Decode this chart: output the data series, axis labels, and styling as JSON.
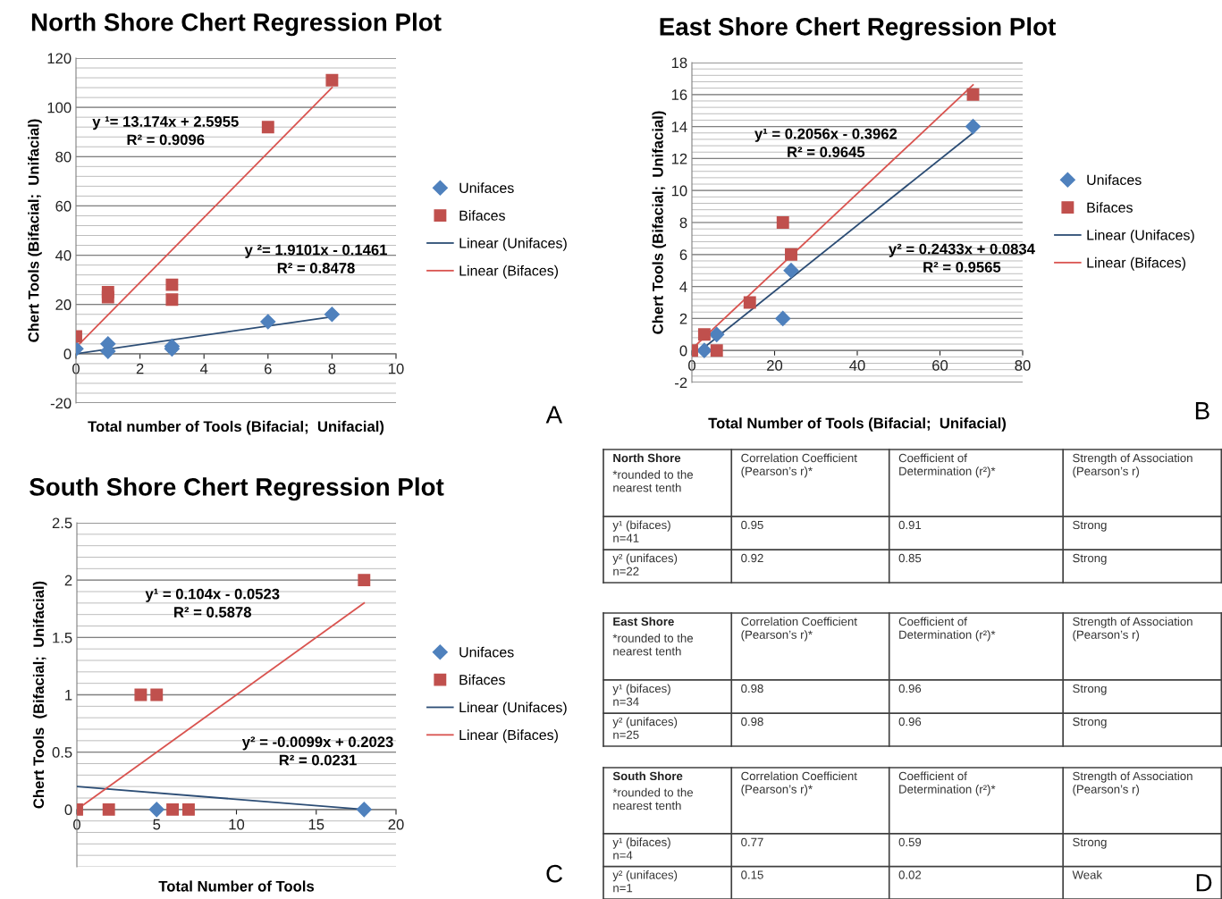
{
  "chart_data": [
    {
      "type": "scatter",
      "title": "North Shore Chert Regression Plot",
      "xlabel": "Total number of Tools (Bifacial;  Unifacial)",
      "ylabel": "Chert Tools (Bifacial;  Unifacial)",
      "xlim": [
        0,
        10
      ],
      "xticks": [
        0,
        2,
        4,
        6,
        8,
        10
      ],
      "ylim": [
        -20,
        120
      ],
      "yticks": [
        -20,
        0,
        20,
        40,
        60,
        80,
        100,
        120
      ],
      "grid": "y",
      "legend": "right",
      "series": [
        {
          "name": "Unifaces",
          "type": "scatter",
          "marker": "diamond",
          "color": "#4f81bd",
          "x": [
            0,
            1,
            1,
            3,
            3,
            6,
            8
          ],
          "values": [
            2,
            4,
            1,
            3,
            2,
            13,
            16
          ]
        },
        {
          "name": "Bifaces",
          "type": "scatter",
          "marker": "square",
          "color": "#c0504d",
          "x": [
            0,
            1,
            1,
            3,
            3,
            6,
            8
          ],
          "values": [
            7,
            25,
            23,
            28,
            22,
            92,
            111
          ]
        },
        {
          "name": "Linear (Unifaces)",
          "type": "line",
          "color": "#2c4d75",
          "x": [
            0,
            8
          ],
          "values": [
            0,
            15
          ]
        },
        {
          "name": "Linear (Bifaces)",
          "type": "line",
          "color": "#d9534f",
          "x": [
            0,
            8
          ],
          "values": [
            2.6,
            108
          ]
        }
      ],
      "annotations": [
        "y ¹= 13.174x + 2.5955\nR² = 0.9096",
        "y ²= 1.9101x - 0.1461\nR² = 0.8478",
        "A"
      ]
    },
    {
      "type": "scatter",
      "title": "East Shore Chert Regression Plot",
      "xlabel": "Total Number of Tools (Bifacial;  Unifacial)",
      "ylabel": "Chert Tools (Bifacial;  Unifacial)",
      "xlim": [
        0,
        80
      ],
      "xticks": [
        0,
        20,
        40,
        60,
        80
      ],
      "ylim": [
        -2,
        18
      ],
      "yticks": [
        -2,
        0,
        2,
        4,
        6,
        8,
        10,
        12,
        14,
        16,
        18
      ],
      "grid": "y",
      "legend": "right",
      "series": [
        {
          "name": "Unifaces",
          "type": "scatter",
          "marker": "diamond",
          "color": "#4f81bd",
          "x": [
            3,
            6,
            22,
            24,
            68
          ],
          "values": [
            0,
            1,
            2,
            5,
            14
          ]
        },
        {
          "name": "Bifaces",
          "type": "scatter",
          "marker": "square",
          "color": "#c0504d",
          "x": [
            0,
            3,
            6,
            14,
            22,
            24,
            68
          ],
          "values": [
            0,
            1,
            0,
            3,
            8,
            6,
            16
          ]
        },
        {
          "name": "Linear (Unifaces)",
          "type": "line",
          "color": "#2c4d75",
          "x": [
            3,
            68
          ],
          "values": [
            0.2,
            13.6
          ]
        },
        {
          "name": "Linear (Bifaces)",
          "type": "line",
          "color": "#d9534f",
          "x": [
            0,
            68
          ],
          "values": [
            0.1,
            16.6
          ]
        }
      ],
      "annotations": [
        "y¹ = 0.2056x - 0.3962\nR² = 0.9645",
        "y² = 0.2433x + 0.0834\nR² = 0.9565",
        "B"
      ]
    },
    {
      "type": "scatter",
      "title": "South Shore Chert Regression Plot",
      "xlabel": "Total Number of Tools",
      "ylabel": "Chert Tools  (Bifacial;  Unifacial)",
      "xlim": [
        0,
        20
      ],
      "xticks": [
        0,
        5,
        10,
        15,
        20
      ],
      "ylim": [
        -0.5,
        2.5
      ],
      "yticks": [
        0,
        0.5,
        1,
        1.5,
        2,
        2.5
      ],
      "grid": "y",
      "legend": "right",
      "series": [
        {
          "name": "Unifaces",
          "type": "scatter",
          "marker": "diamond",
          "color": "#4f81bd",
          "x": [
            5,
            18
          ],
          "values": [
            0,
            0
          ]
        },
        {
          "name": "Bifaces",
          "type": "scatter",
          "marker": "square",
          "color": "#c0504d",
          "x": [
            0,
            2,
            4,
            5,
            6,
            7,
            18
          ],
          "values": [
            0,
            0,
            1,
            1,
            0,
            0,
            2
          ]
        },
        {
          "name": "Linear (Unifaces)",
          "type": "line",
          "color": "#2c4d75",
          "x": [
            0,
            18
          ],
          "values": [
            0.2,
            0.0
          ]
        },
        {
          "name": "Linear (Bifaces)",
          "type": "line",
          "color": "#d9534f",
          "x": [
            0,
            18
          ],
          "values": [
            0.0,
            1.8
          ]
        }
      ],
      "annotations": [
        "y¹ = 0.104x - 0.0523\nR² = 0.5878",
        "y² = -0.0099x + 0.2023\nR² = 0.0231",
        "C"
      ]
    },
    {
      "type": "other",
      "cell_labels": [
        [
          "North Shore\n\n*rounded to the\nnearest tenth",
          "Correlation Coefficient\n(Pearson’s r)*",
          "Coefficient of\nDetermination (r²)*",
          "Strength of Association\n(Pearson’s r)"
        ],
        [
          "y¹ (bifaces)\nn=41",
          "0.95",
          "0.91",
          "Strong"
        ],
        [
          "y² (unifaces)\nn=22",
          "0.92",
          "0.85",
          "Strong"
        ]
      ]
    },
    {
      "type": "other",
      "cell_labels": [
        [
          "East Shore\n\n*rounded to the\nnearest tenth",
          "Correlation Coefficient\n(Pearson’s r)*",
          "Coefficient of\nDetermination (r²)*",
          "Strength of Association\n(Pearson’s r)"
        ],
        [
          "y¹ (bifaces)\nn=34",
          "0.98",
          "0.96",
          "Strong"
        ],
        [
          "y² (unifaces)\nn=25",
          "0.98",
          "0.96",
          "Strong"
        ]
      ]
    },
    {
      "type": "other",
      "cell_labels": [
        [
          "South Shore\n\n*rounded to the\nnearest tenth",
          "Correlation Coefficient\n(Pearson’s r)*",
          "Coefficient of\nDetermination (r²)*",
          "Strength of Association\n(Pearson’s r)"
        ],
        [
          "y¹ (bifaces)\nn=4",
          "0.77",
          "0.59",
          "Strong"
        ],
        [
          "y² (unifaces)\nn=1",
          "0.15",
          "0.02",
          "Weak"
        ]
      ],
      "annotations": [
        "D"
      ]
    }
  ]
}
